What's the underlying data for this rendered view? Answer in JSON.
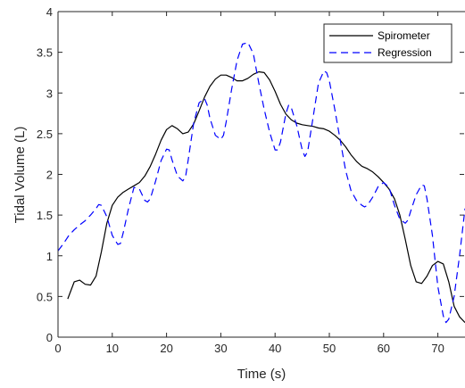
{
  "chart_data": {
    "type": "line",
    "xlabel": "Time (s)",
    "ylabel": "Tidal Volume (L)",
    "xlim": [
      0,
      75
    ],
    "ylim": [
      0,
      4
    ],
    "xticks": [
      "0",
      "10",
      "20",
      "30",
      "40",
      "50",
      "60",
      "70"
    ],
    "yticks": [
      "0",
      "0.5",
      "1",
      "1.5",
      "2",
      "2.5",
      "3",
      "3.5",
      "4"
    ],
    "grid": false,
    "legend_position": "top-right",
    "series": [
      {
        "name": "Spirometer",
        "color": "#000000",
        "style": "solid",
        "x": [
          1.8,
          3,
          4,
          5,
          6,
          7,
          8,
          9,
          10,
          11,
          12,
          13,
          14,
          15,
          16,
          17,
          18,
          19,
          20,
          21,
          22,
          23,
          24,
          25,
          26,
          27,
          28,
          29,
          30,
          31,
          32,
          33,
          34,
          35,
          36,
          37,
          38,
          39,
          40,
          41,
          42,
          43,
          44,
          45,
          46,
          47,
          48,
          49,
          50,
          51,
          52,
          53,
          54,
          55,
          56,
          57,
          58,
          59,
          60,
          61,
          62,
          63,
          64,
          65,
          66,
          67,
          68,
          69,
          70,
          71,
          72,
          73,
          74,
          75
        ],
        "y": [
          0.47,
          0.68,
          0.7,
          0.65,
          0.64,
          0.75,
          1.05,
          1.4,
          1.62,
          1.72,
          1.78,
          1.82,
          1.86,
          1.9,
          1.98,
          2.1,
          2.25,
          2.42,
          2.55,
          2.6,
          2.56,
          2.5,
          2.52,
          2.62,
          2.78,
          2.95,
          3.08,
          3.17,
          3.22,
          3.22,
          3.19,
          3.15,
          3.15,
          3.18,
          3.23,
          3.26,
          3.25,
          3.16,
          3.02,
          2.86,
          2.74,
          2.67,
          2.63,
          2.61,
          2.6,
          2.59,
          2.57,
          2.56,
          2.53,
          2.48,
          2.42,
          2.34,
          2.24,
          2.16,
          2.1,
          2.07,
          2.03,
          1.97,
          1.9,
          1.82,
          1.7,
          1.5,
          1.2,
          0.88,
          0.68,
          0.66,
          0.75,
          0.88,
          0.93,
          0.9,
          0.68,
          0.38,
          0.25,
          0.18
        ]
      },
      {
        "name": "Regression",
        "color": "#0000ff",
        "style": "dashed",
        "x": [
          0,
          1,
          2,
          3,
          4,
          5,
          6,
          7,
          7.5,
          8,
          9,
          10,
          11,
          11.5,
          12,
          13,
          14,
          15,
          16,
          16.5,
          17,
          18,
          19,
          20,
          20.5,
          21,
          22,
          23,
          23.5,
          24,
          25,
          26,
          27,
          27.5,
          28,
          29,
          30,
          30.5,
          31,
          32,
          33,
          34,
          35,
          36,
          37,
          38,
          39,
          40,
          40.5,
          41,
          42,
          42.5,
          43,
          44,
          45,
          45.5,
          46,
          47,
          48,
          49,
          49.5,
          50,
          51,
          52,
          53,
          54,
          55,
          56,
          56.5,
          57,
          58,
          59,
          60,
          61,
          62,
          63,
          64,
          64.5,
          65,
          66,
          67,
          67.5,
          68,
          69,
          70,
          71,
          71.5,
          72,
          73,
          74,
          75
        ],
        "y": [
          1.06,
          1.15,
          1.25,
          1.32,
          1.38,
          1.43,
          1.5,
          1.58,
          1.63,
          1.62,
          1.48,
          1.25,
          1.14,
          1.15,
          1.28,
          1.58,
          1.84,
          1.82,
          1.68,
          1.66,
          1.7,
          1.92,
          2.17,
          2.31,
          2.3,
          2.18,
          1.98,
          1.92,
          1.97,
          2.18,
          2.63,
          2.88,
          2.93,
          2.85,
          2.69,
          2.48,
          2.43,
          2.48,
          2.65,
          3.05,
          3.4,
          3.6,
          3.62,
          3.48,
          3.12,
          2.8,
          2.52,
          2.3,
          2.3,
          2.4,
          2.75,
          2.85,
          2.82,
          2.6,
          2.3,
          2.22,
          2.28,
          2.7,
          3.12,
          3.27,
          3.25,
          3.15,
          2.8,
          2.42,
          2.05,
          1.8,
          1.68,
          1.62,
          1.6,
          1.62,
          1.72,
          1.85,
          1.9,
          1.84,
          1.62,
          1.45,
          1.4,
          1.44,
          1.55,
          1.75,
          1.87,
          1.86,
          1.7,
          1.25,
          0.62,
          0.26,
          0.18,
          0.22,
          0.5,
          1.0,
          1.58
        ]
      }
    ]
  }
}
